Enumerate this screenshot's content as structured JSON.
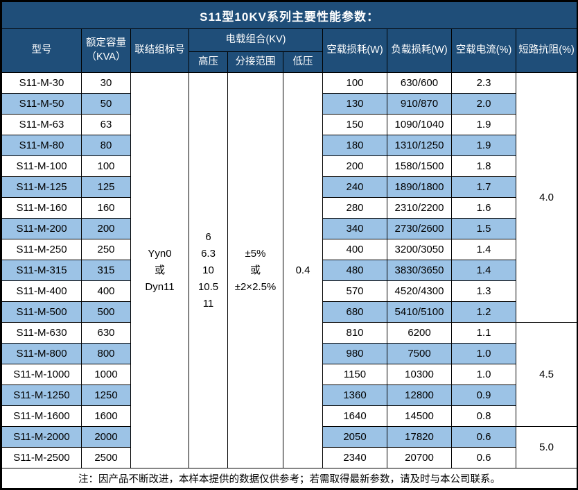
{
  "title": "S11型10KV系列主要性能参数：",
  "header": {
    "model": "型号",
    "capacity": "额定容量\n（KVA）",
    "vector_group": "联结组标号",
    "voltage_combo": "电载组合(KV)",
    "hv": "高压",
    "tap_range": "分接范围",
    "lv": "低压",
    "no_load_loss": "空载损耗(W)",
    "load_loss": "负载损耗(W)",
    "no_load_current": "空载电流(%)",
    "impedance": "短路抗阻(%)"
  },
  "merged": {
    "vector_group": [
      "Yyn0",
      "或",
      "Dyn11"
    ],
    "hv": [
      "6",
      "6.3",
      "10",
      "10.5",
      "11"
    ],
    "tap_range": [
      "±5%",
      "或",
      "±2×2.5%"
    ],
    "lv": "0.4"
  },
  "rows": [
    {
      "model": "S11-M-30",
      "kva": "30",
      "no_load_loss": "100",
      "load_loss": "630/600",
      "no_load_current": "2.3"
    },
    {
      "model": "S11-M-50",
      "kva": "50",
      "no_load_loss": "130",
      "load_loss": "910/870",
      "no_load_current": "2.0"
    },
    {
      "model": "S11-M-63",
      "kva": "63",
      "no_load_loss": "150",
      "load_loss": "1090/1040",
      "no_load_current": "1.9"
    },
    {
      "model": "S11-M-80",
      "kva": "80",
      "no_load_loss": "180",
      "load_loss": "1310/1250",
      "no_load_current": "1.9"
    },
    {
      "model": "S11-M-100",
      "kva": "100",
      "no_load_loss": "200",
      "load_loss": "1580/1500",
      "no_load_current": "1.8"
    },
    {
      "model": "S11-M-125",
      "kva": "125",
      "no_load_loss": "240",
      "load_loss": "1890/1800",
      "no_load_current": "1.7"
    },
    {
      "model": "S11-M-160",
      "kva": "160",
      "no_load_loss": "280",
      "load_loss": "2310/2200",
      "no_load_current": "1.6"
    },
    {
      "model": "S11-M-200",
      "kva": "200",
      "no_load_loss": "340",
      "load_loss": "2730/2600",
      "no_load_current": "1.5"
    },
    {
      "model": "S11-M-250",
      "kva": "250",
      "no_load_loss": "400",
      "load_loss": "3200/3050",
      "no_load_current": "1.4"
    },
    {
      "model": "S11-M-315",
      "kva": "315",
      "no_load_loss": "480",
      "load_loss": "3830/3650",
      "no_load_current": "1.4"
    },
    {
      "model": "S11-M-400",
      "kva": "400",
      "no_load_loss": "570",
      "load_loss": "4520/4300",
      "no_load_current": "1.3"
    },
    {
      "model": "S11-M-500",
      "kva": "500",
      "no_load_loss": "680",
      "load_loss": "5410/5100",
      "no_load_current": "1.2"
    },
    {
      "model": "S11-M-630",
      "kva": "630",
      "no_load_loss": "810",
      "load_loss": "6200",
      "no_load_current": "1.1"
    },
    {
      "model": "S11-M-800",
      "kva": "800",
      "no_load_loss": "980",
      "load_loss": "7500",
      "no_load_current": "1.0"
    },
    {
      "model": "S11-M-1000",
      "kva": "1000",
      "no_load_loss": "1150",
      "load_loss": "10300",
      "no_load_current": "1.0"
    },
    {
      "model": "S11-M-1250",
      "kva": "1250",
      "no_load_loss": "1360",
      "load_loss": "12800",
      "no_load_current": "0.9"
    },
    {
      "model": "S11-M-1600",
      "kva": "1600",
      "no_load_loss": "1640",
      "load_loss": "14500",
      "no_load_current": "0.8"
    },
    {
      "model": "S11-M-2000",
      "kva": "2000",
      "no_load_loss": "2050",
      "load_loss": "17820",
      "no_load_current": "0.6"
    },
    {
      "model": "S11-M-2500",
      "kva": "2500",
      "no_load_loss": "2340",
      "load_loss": "20700",
      "no_load_current": "0.6"
    }
  ],
  "impedance_groups": [
    {
      "value": "4.0",
      "span": 12
    },
    {
      "value": "4.5",
      "span": 5
    },
    {
      "value": "5.0",
      "span": 2
    }
  ],
  "footer_note": "注：因产品不断改进，本样本提供的数据仅供参考；若需取得最新参数，请及时与本公司联系。",
  "colors": {
    "header_bg": "#1F4E79",
    "alt_row_bg": "#9CC3E6",
    "border": "#000000",
    "header_text": "#FFFFFF",
    "body_text": "#000000"
  }
}
